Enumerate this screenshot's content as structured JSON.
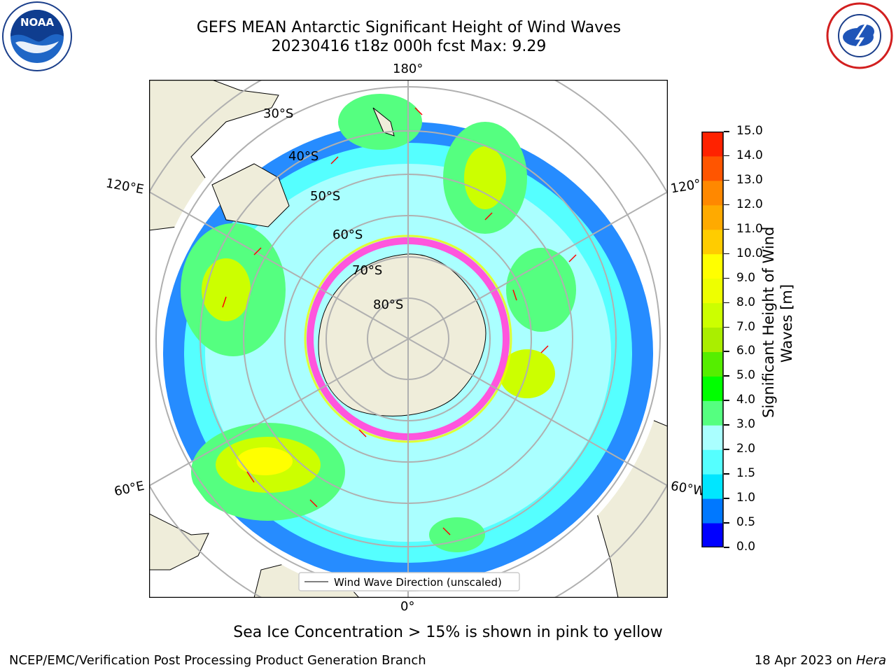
{
  "header": {
    "title_line1": "GEFS MEAN Antarctic Significant Height of Wind Waves",
    "title_line2": "20230416 t18z 000h fcst   Max: 9.29"
  },
  "logos": {
    "left": "noaa-logo",
    "right": "nws-logo",
    "noaa_text": "NOAA"
  },
  "map": {
    "lon_labels": {
      "top": "180°",
      "bottom": "0°",
      "left_upper": "120°E",
      "left_lower": "60°E",
      "right_upper": "120°",
      "right_lower": "60°W"
    },
    "lat_labels": [
      "30°S",
      "40°S",
      "50°S",
      "60°S",
      "70°S",
      "80°S"
    ],
    "legend_label": "Wind Wave Direction (unscaled)",
    "land_color": "#efedda",
    "arrow_color": "#ff0000",
    "ice_color": "#ff55dd"
  },
  "colorbar": {
    "title_line1": "Significant Height of Wind",
    "title_line2": "Waves [m]",
    "ticks": [
      "0.0",
      "0.5",
      "1.0",
      "1.5",
      "2.0",
      "3.0",
      "4.0",
      "5.0",
      "6.0",
      "7.0",
      "8.0",
      "9.0",
      "10.0",
      "11.0",
      "12.0",
      "13.0",
      "14.0",
      "15.0"
    ],
    "colors": [
      "#0000ff",
      "#0078ff",
      "#00e6ff",
      "#55ffff",
      "#aaffff",
      "#55ff80",
      "#00ff00",
      "#55ee00",
      "#aaee00",
      "#ccff00",
      "#eeff00",
      "#ffff00",
      "#ffcc00",
      "#ffaa00",
      "#ff8800",
      "#ff5500",
      "#ff2200",
      "#ff0000"
    ]
  },
  "footer": {
    "note": "Sea Ice Concentration > 15% is shown in pink to yellow",
    "left": "NCEP/EMC/Verification Post Processing Product Generation Branch",
    "right_prefix": "18 Apr 2023 on ",
    "right_host": "Hera"
  }
}
